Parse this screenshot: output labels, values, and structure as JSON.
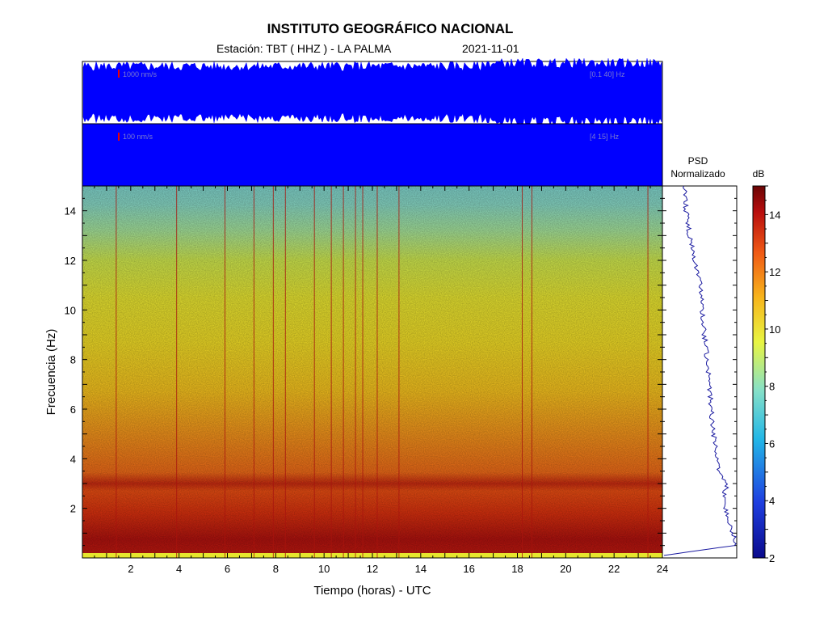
{
  "header": {
    "title": "INSTITUTO GEOGRÁFICO NACIONAL",
    "station": "Estación:  TBT ( HHZ ) - LA PALMA",
    "date": "2021-11-01"
  },
  "traces": [
    {
      "scale": "1000 nm/s",
      "band": "[0.1 40]  Hz"
    },
    {
      "scale": "100 nm/s",
      "band": "[4 15] Hz"
    }
  ],
  "psd": {
    "title_line1": "PSD",
    "title_line2": "Normalizado"
  },
  "colorbar": {
    "unit": "dB",
    "ticks": [
      2,
      4,
      6,
      8,
      10,
      12,
      14
    ],
    "range": [
      2,
      15
    ],
    "colors": [
      "#0a0a8c",
      "#1f3fe0",
      "#23b7e6",
      "#86e0c8",
      "#e8f542",
      "#f7b51c",
      "#f05a15",
      "#b80e0e",
      "#6a0505"
    ]
  },
  "chart_data": {
    "type": "heatmap",
    "xlabel": "Tiempo (horas) - UTC",
    "ylabel": "Frecuencia  (Hz)",
    "xlim": [
      0,
      24
    ],
    "ylim": [
      0,
      15
    ],
    "xticks": [
      2,
      4,
      6,
      8,
      10,
      12,
      14,
      16,
      18,
      20,
      22,
      24
    ],
    "yticks": [
      2,
      4,
      6,
      8,
      10,
      12,
      14
    ],
    "event_times_h": [
      1.4,
      3.9,
      5.9,
      7.1,
      7.9,
      8.4,
      9.6,
      10.3,
      10.8,
      11.3,
      11.6,
      12.2,
      13.1,
      18.2,
      18.6,
      23.4
    ],
    "psd_profile": {
      "freq_hz": [
        0.1,
        0.5,
        0.8,
        1.0,
        1.5,
        2.0,
        2.5,
        2.9,
        3.5,
        4.0,
        5.0,
        6.0,
        7.0,
        8.0,
        9.0,
        10.0,
        11.0,
        12.0,
        13.0,
        14.0,
        15.0
      ],
      "db_norm": [
        2,
        14.6,
        15,
        14.2,
        13.6,
        13.2,
        12.8,
        13.4,
        11.8,
        11.6,
        11.0,
        10.5,
        10.2,
        9.8,
        9.3,
        8.9,
        8.6,
        7.6,
        6.6,
        6.0,
        5.6
      ]
    }
  }
}
